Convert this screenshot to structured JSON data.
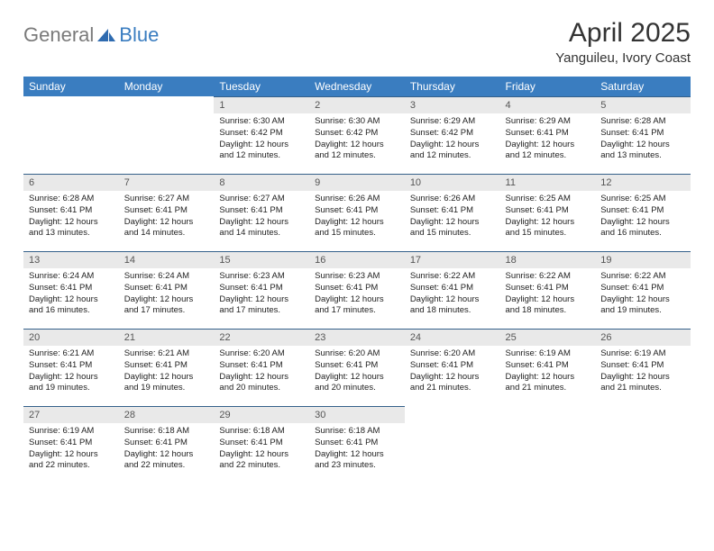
{
  "logo": {
    "general": "General",
    "blue": "Blue"
  },
  "header": {
    "title": "April 2025",
    "location": "Yanguileu, Ivory Coast"
  },
  "colors": {
    "header_bg": "#3a7dc0",
    "header_text": "#ffffff",
    "daynum_bg": "#e9e9e9",
    "row_border": "#34608a"
  },
  "weekdays": [
    "Sunday",
    "Monday",
    "Tuesday",
    "Wednesday",
    "Thursday",
    "Friday",
    "Saturday"
  ],
  "weeks": [
    [
      null,
      null,
      {
        "n": "1",
        "sr": "6:30 AM",
        "ss": "6:42 PM",
        "dl": "12 hours and 12 minutes."
      },
      {
        "n": "2",
        "sr": "6:30 AM",
        "ss": "6:42 PM",
        "dl": "12 hours and 12 minutes."
      },
      {
        "n": "3",
        "sr": "6:29 AM",
        "ss": "6:42 PM",
        "dl": "12 hours and 12 minutes."
      },
      {
        "n": "4",
        "sr": "6:29 AM",
        "ss": "6:41 PM",
        "dl": "12 hours and 12 minutes."
      },
      {
        "n": "5",
        "sr": "6:28 AM",
        "ss": "6:41 PM",
        "dl": "12 hours and 13 minutes."
      }
    ],
    [
      {
        "n": "6",
        "sr": "6:28 AM",
        "ss": "6:41 PM",
        "dl": "12 hours and 13 minutes."
      },
      {
        "n": "7",
        "sr": "6:27 AM",
        "ss": "6:41 PM",
        "dl": "12 hours and 14 minutes."
      },
      {
        "n": "8",
        "sr": "6:27 AM",
        "ss": "6:41 PM",
        "dl": "12 hours and 14 minutes."
      },
      {
        "n": "9",
        "sr": "6:26 AM",
        "ss": "6:41 PM",
        "dl": "12 hours and 15 minutes."
      },
      {
        "n": "10",
        "sr": "6:26 AM",
        "ss": "6:41 PM",
        "dl": "12 hours and 15 minutes."
      },
      {
        "n": "11",
        "sr": "6:25 AM",
        "ss": "6:41 PM",
        "dl": "12 hours and 15 minutes."
      },
      {
        "n": "12",
        "sr": "6:25 AM",
        "ss": "6:41 PM",
        "dl": "12 hours and 16 minutes."
      }
    ],
    [
      {
        "n": "13",
        "sr": "6:24 AM",
        "ss": "6:41 PM",
        "dl": "12 hours and 16 minutes."
      },
      {
        "n": "14",
        "sr": "6:24 AM",
        "ss": "6:41 PM",
        "dl": "12 hours and 17 minutes."
      },
      {
        "n": "15",
        "sr": "6:23 AM",
        "ss": "6:41 PM",
        "dl": "12 hours and 17 minutes."
      },
      {
        "n": "16",
        "sr": "6:23 AM",
        "ss": "6:41 PM",
        "dl": "12 hours and 17 minutes."
      },
      {
        "n": "17",
        "sr": "6:22 AM",
        "ss": "6:41 PM",
        "dl": "12 hours and 18 minutes."
      },
      {
        "n": "18",
        "sr": "6:22 AM",
        "ss": "6:41 PM",
        "dl": "12 hours and 18 minutes."
      },
      {
        "n": "19",
        "sr": "6:22 AM",
        "ss": "6:41 PM",
        "dl": "12 hours and 19 minutes."
      }
    ],
    [
      {
        "n": "20",
        "sr": "6:21 AM",
        "ss": "6:41 PM",
        "dl": "12 hours and 19 minutes."
      },
      {
        "n": "21",
        "sr": "6:21 AM",
        "ss": "6:41 PM",
        "dl": "12 hours and 19 minutes."
      },
      {
        "n": "22",
        "sr": "6:20 AM",
        "ss": "6:41 PM",
        "dl": "12 hours and 20 minutes."
      },
      {
        "n": "23",
        "sr": "6:20 AM",
        "ss": "6:41 PM",
        "dl": "12 hours and 20 minutes."
      },
      {
        "n": "24",
        "sr": "6:20 AM",
        "ss": "6:41 PM",
        "dl": "12 hours and 21 minutes."
      },
      {
        "n": "25",
        "sr": "6:19 AM",
        "ss": "6:41 PM",
        "dl": "12 hours and 21 minutes."
      },
      {
        "n": "26",
        "sr": "6:19 AM",
        "ss": "6:41 PM",
        "dl": "12 hours and 21 minutes."
      }
    ],
    [
      {
        "n": "27",
        "sr": "6:19 AM",
        "ss": "6:41 PM",
        "dl": "12 hours and 22 minutes."
      },
      {
        "n": "28",
        "sr": "6:18 AM",
        "ss": "6:41 PM",
        "dl": "12 hours and 22 minutes."
      },
      {
        "n": "29",
        "sr": "6:18 AM",
        "ss": "6:41 PM",
        "dl": "12 hours and 22 minutes."
      },
      {
        "n": "30",
        "sr": "6:18 AM",
        "ss": "6:41 PM",
        "dl": "12 hours and 23 minutes."
      },
      null,
      null,
      null
    ]
  ]
}
